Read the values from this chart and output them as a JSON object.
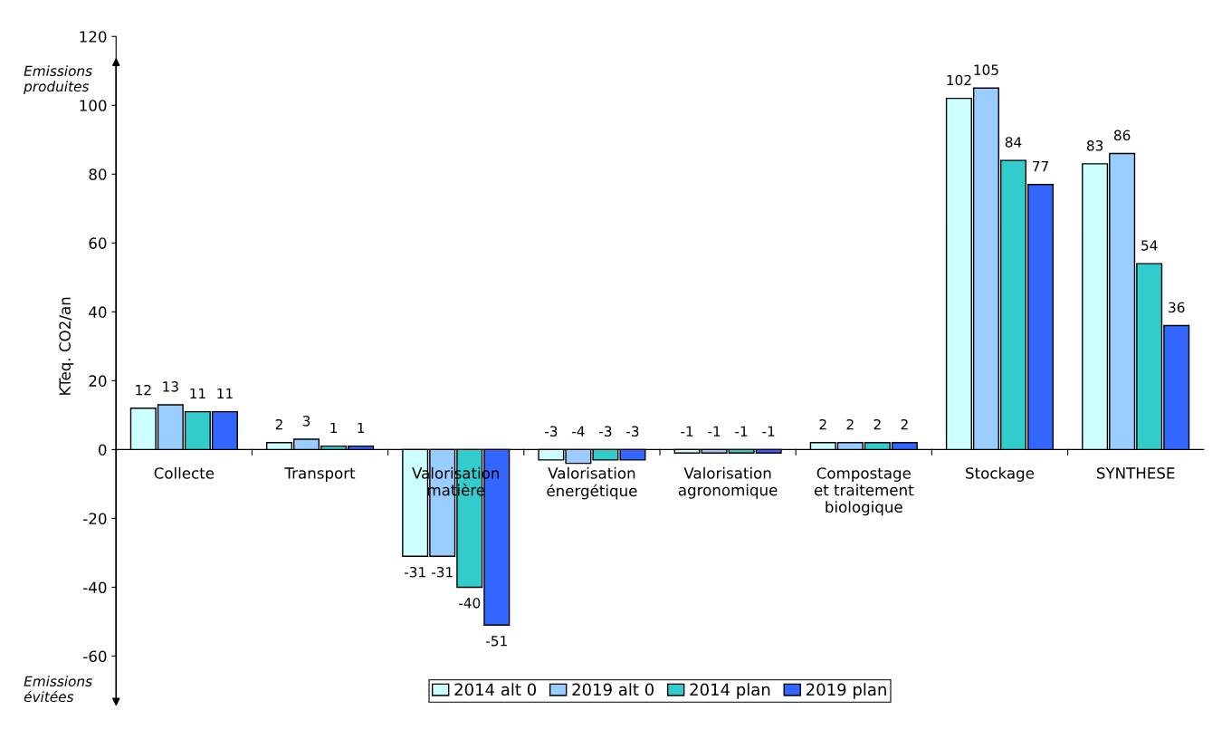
{
  "chart_data": {
    "type": "bar",
    "ylabel": "KTeq. CO2/an",
    "categories": [
      "Collecte",
      "Transport",
      "Valorisation\nmatière",
      "Valorisation\nénergétique",
      "Valorisation\nagronomique",
      "Compostage\net traitement\nbiologique",
      "Stockage",
      "SYNTHESE"
    ],
    "series": [
      {
        "name": "2014 alt 0",
        "color": "#ccffff",
        "values": [
          12,
          2,
          -31,
          -3,
          -1,
          2,
          102,
          83
        ]
      },
      {
        "name": "2019 alt 0",
        "color": "#99ccff",
        "values": [
          13,
          3,
          -31,
          -4,
          -1,
          2,
          105,
          86
        ]
      },
      {
        "name": "2014 plan",
        "color": "#33cccc",
        "values": [
          11,
          1,
          -40,
          -3,
          -1,
          2,
          84,
          54
        ]
      },
      {
        "name": "2019 plan",
        "color": "#3366ff",
        "values": [
          11,
          1,
          -51,
          -3,
          -1,
          2,
          77,
          36
        ]
      }
    ],
    "ylim": [
      -60,
      120
    ],
    "yticks": [
      -60,
      -40,
      -20,
      0,
      20,
      40,
      60,
      80,
      100,
      120
    ],
    "data_labels": true,
    "grid": false,
    "legend": "bottom",
    "annotations": [
      "Emissions\nproduites",
      "Emissions\névitées"
    ]
  }
}
